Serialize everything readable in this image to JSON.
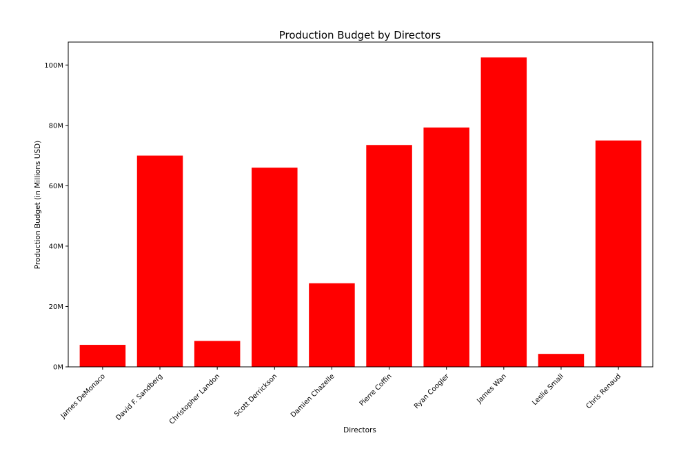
{
  "chart_data": {
    "type": "bar",
    "title": "Production Budget by Directors",
    "xlabel": "Directors",
    "ylabel": "Production Budget (in Millions USD)",
    "categories": [
      "James DeMonaco",
      "David F. Sandberg",
      "Christopher Landon",
      "Scott Derrickson",
      "Damien Chazelle",
      "Pierre Coffin",
      "Ryan Coogler",
      "James Wan",
      "Leslie Small",
      "Chris Renaud"
    ],
    "values": [
      7.3,
      70,
      8.6,
      66,
      27.7,
      73.5,
      79.3,
      102.5,
      4.3,
      75
    ],
    "ylim": [
      0,
      107.6
    ],
    "yticks": [
      0,
      20,
      40,
      60,
      80,
      100
    ],
    "ytick_labels": [
      "0M",
      "20M",
      "40M",
      "60M",
      "80M",
      "100M"
    ],
    "grid": false,
    "legend": "none",
    "bar_color": "#ff0000"
  }
}
